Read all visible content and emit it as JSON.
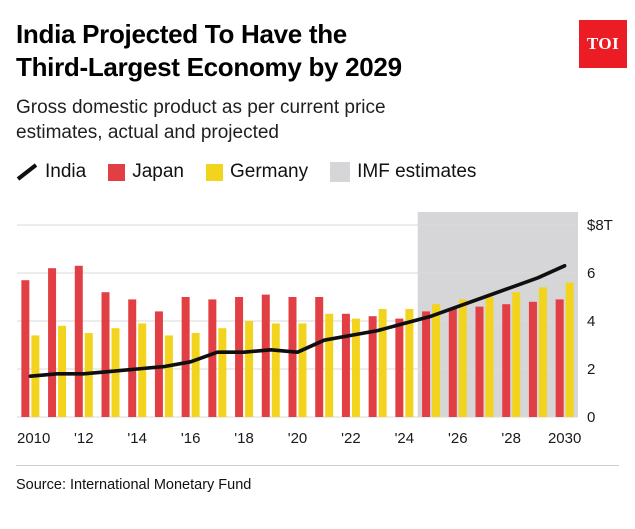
{
  "header": {
    "title_line1": "India Projected To Have the",
    "title_line2": "Third-Largest Economy by 2029",
    "subtitle_line1": "Gross domestic product as per current price",
    "subtitle_line2": "estimates, actual and projected",
    "logo_text": "TOI",
    "logo_color": "#ec1c24"
  },
  "legend": [
    {
      "label": "India",
      "type": "line",
      "color": "#0f0f0f"
    },
    {
      "label": "Japan",
      "type": "bar",
      "color": "#e23f44"
    },
    {
      "label": "Germany",
      "type": "bar",
      "color": "#f2d41e"
    },
    {
      "label": "IMF estimates",
      "type": "band",
      "color": "#d6d6d8"
    }
  ],
  "chart_data": {
    "type": "bar",
    "title": "GDP as per current price estimates, actual and projected",
    "unit": "$T",
    "years": [
      2010,
      2011,
      2012,
      2013,
      2014,
      2015,
      2016,
      2017,
      2018,
      2019,
      2020,
      2021,
      2022,
      2023,
      2024,
      2025,
      2026,
      2027,
      2028,
      2029,
      2030
    ],
    "series": [
      {
        "name": "Japan",
        "type": "bar",
        "color": "#e23f44",
        "values": [
          5.7,
          6.2,
          6.3,
          5.2,
          4.9,
          4.4,
          5.0,
          4.9,
          5.0,
          5.1,
          5.0,
          5.0,
          4.3,
          4.2,
          4.1,
          4.4,
          4.5,
          4.6,
          4.7,
          4.8,
          4.9
        ]
      },
      {
        "name": "Germany",
        "type": "bar",
        "color": "#f2d41e",
        "values": [
          3.4,
          3.8,
          3.5,
          3.7,
          3.9,
          3.4,
          3.5,
          3.7,
          4.0,
          3.9,
          3.9,
          4.3,
          4.1,
          4.5,
          4.5,
          4.7,
          4.9,
          5.0,
          5.2,
          5.4,
          5.6
        ]
      },
      {
        "name": "India",
        "type": "line",
        "color": "#0f0f0f",
        "values": [
          1.7,
          1.8,
          1.8,
          1.9,
          2.0,
          2.1,
          2.3,
          2.7,
          2.7,
          2.8,
          2.7,
          3.2,
          3.4,
          3.6,
          3.9,
          4.2,
          4.6,
          5.0,
          5.4,
          5.8,
          6.3
        ]
      }
    ],
    "imf_band_start_year": 2025,
    "imf_band_color": "#d6d6d8",
    "y_ticks": [
      0,
      2,
      4,
      6,
      8
    ],
    "y_top_label": "$8T",
    "ylim": [
      0,
      8
    ],
    "x_tick_labels": [
      "2010",
      "'12",
      "'14",
      "'16",
      "'18",
      "'20",
      "'22",
      "'24",
      "'26",
      "'28",
      "2030"
    ],
    "grid": true,
    "legend_position": "top"
  },
  "footer": {
    "source": "Source: International Monetary Fund"
  }
}
